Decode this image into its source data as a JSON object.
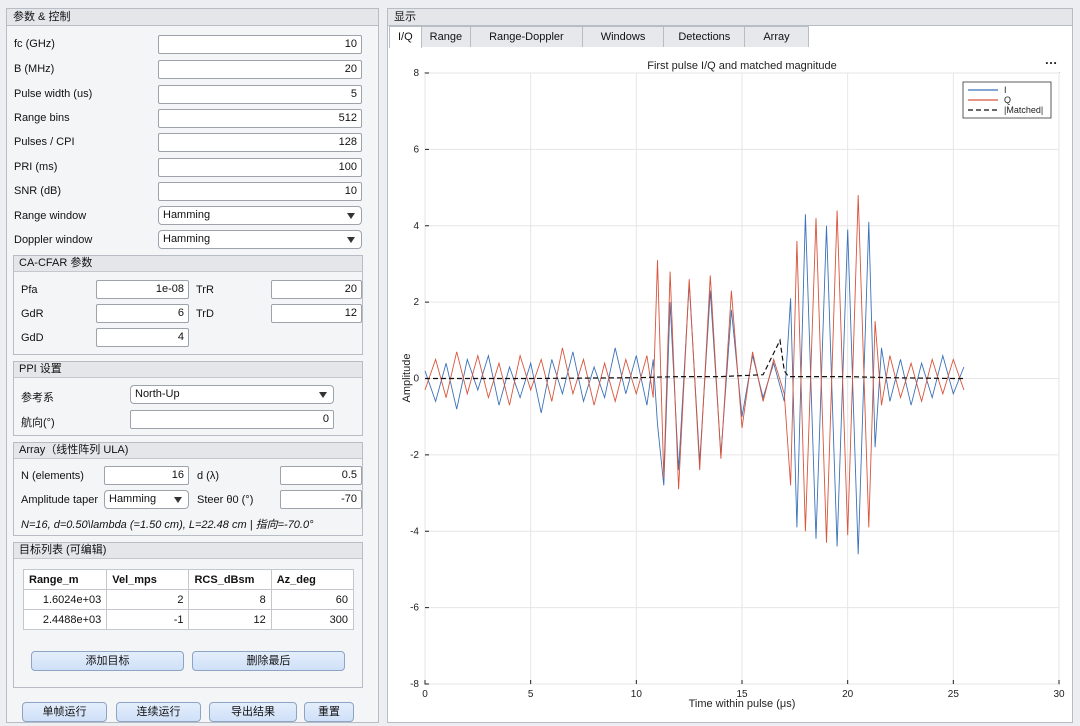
{
  "left_panel": {
    "title": "参数 & 控制"
  },
  "params": [
    {
      "label": "fc (GHz)",
      "value": "10"
    },
    {
      "label": "B (MHz)",
      "value": "20"
    },
    {
      "label": "Pulse width (us)",
      "value": "5"
    },
    {
      "label": "Range bins",
      "value": "512"
    },
    {
      "label": "Pulses / CPI",
      "value": "128"
    },
    {
      "label": "PRI (ms)",
      "value": "100"
    },
    {
      "label": "SNR (dB)",
      "value": "10"
    }
  ],
  "range_window": {
    "label": "Range window",
    "value": "Hamming"
  },
  "doppler_window": {
    "label": "Doppler window",
    "value": "Hamming"
  },
  "cfar": {
    "title": "CA-CFAR 参数",
    "pfa_label": "Pfa",
    "pfa": "1e-08",
    "trr_label": "TrR",
    "trr": "20",
    "gdr_label": "GdR",
    "gdr": "6",
    "trd_label": "TrD",
    "trd": "12",
    "gdd_label": "GdD",
    "gdd": "4"
  },
  "ppi": {
    "title": "PPI 设置",
    "ref_label": "参考系",
    "ref_value": "North-Up",
    "heading_label": "航向(°)",
    "heading_value": "0"
  },
  "array": {
    "title": "Array（线性阵列 ULA)",
    "n_label": "N (elements)",
    "n_value": "16",
    "d_label": "d (λ)",
    "d_value": "0.5",
    "taper_label": "Amplitude taper",
    "taper_value": "Hamming",
    "steer_label": "Steer θ0 (°)",
    "steer_value": "-70",
    "summary": "N=16, d=0.50\\lambda (=1.50 cm), L=22.48 cm | 指向=-70.0°"
  },
  "targets": {
    "title": "目标列表 (可编辑)",
    "columns": [
      "Range_m",
      "Vel_mps",
      "RCS_dBsm",
      "Az_deg"
    ],
    "rows": [
      [
        "1.6024e+03",
        "2",
        "8",
        "60"
      ],
      [
        "2.4488e+03",
        "-1",
        "12",
        "300"
      ]
    ],
    "add_label": "添加目标",
    "delete_label": "删除最后"
  },
  "bottom_buttons": {
    "single": "单帧运行",
    "continuous": "连续运行",
    "export": "导出结果",
    "reset": "重置"
  },
  "right_panel": {
    "title": "显示"
  },
  "tabs": [
    "I/Q",
    "Range",
    "Range-Doppler",
    "Windows",
    "Detections",
    "Array"
  ],
  "more_icon": "…",
  "colors": {
    "I": "#3b72b9",
    "Q": "#d9543b",
    "matched": "#111111"
  },
  "chart_data": {
    "type": "line",
    "title": "First pulse I/Q and matched magnitude",
    "xlabel": "Time  within  pulse  (μs)",
    "ylabel": "Amplitude",
    "xlim": [
      0,
      30
    ],
    "ylim": [
      -8,
      8
    ],
    "xticks": [
      0,
      5,
      10,
      15,
      20,
      25,
      30
    ],
    "yticks": [
      -8,
      -6,
      -4,
      -2,
      0,
      2,
      4,
      6,
      8
    ],
    "grid": true,
    "legend_position": "top-right",
    "series": [
      {
        "name": "I",
        "color": "#3b72b9",
        "style": "solid",
        "x": [
          0,
          0.5,
          1,
          1.5,
          2,
          2.5,
          3,
          3.5,
          4,
          4.5,
          5,
          5.5,
          6,
          6.5,
          7,
          7.5,
          8,
          8.5,
          9,
          9.5,
          10,
          10.5,
          10.8,
          11,
          11.3,
          11.6,
          12,
          12.5,
          13,
          13.5,
          14,
          14.5,
          15,
          15.5,
          16,
          16.5,
          17,
          17.3,
          17.6,
          18,
          18.5,
          19,
          19.5,
          20,
          20.5,
          21,
          21.3,
          21.6,
          22,
          22.5,
          23,
          23.5,
          24,
          24.5,
          25,
          25.5
        ],
        "y": [
          0.2,
          -0.6,
          0.4,
          -0.8,
          0.5,
          -0.3,
          0.6,
          -0.7,
          0.3,
          -0.5,
          0.4,
          -0.9,
          0.5,
          -0.4,
          0.7,
          -0.6,
          0.3,
          -0.5,
          0.8,
          -0.4,
          0.6,
          -0.7,
          0.5,
          -1.2,
          -2.8,
          2.0,
          -2.4,
          2.5,
          -2.2,
          2.3,
          -2.0,
          1.8,
          -1.0,
          0.6,
          -0.5,
          0.4,
          -0.6,
          2.1,
          -3.9,
          4.3,
          -4.2,
          4.0,
          -4.4,
          3.9,
          -4.6,
          4.1,
          -1.8,
          0.8,
          -0.6,
          0.5,
          -0.7,
          0.4,
          -0.5,
          0.6,
          -0.4,
          0.3
        ]
      },
      {
        "name": "Q",
        "color": "#d9543b",
        "style": "solid",
        "x": [
          0,
          0.5,
          1,
          1.5,
          2,
          2.5,
          3,
          3.5,
          4,
          4.5,
          5,
          5.5,
          6,
          6.5,
          7,
          7.5,
          8,
          8.5,
          9,
          9.5,
          10,
          10.5,
          10.8,
          11,
          11.3,
          11.6,
          12,
          12.5,
          13,
          13.5,
          14,
          14.5,
          15,
          15.5,
          16,
          16.5,
          17,
          17.3,
          17.6,
          18,
          18.5,
          19,
          19.5,
          20,
          20.5,
          21,
          21.3,
          21.6,
          22,
          22.5,
          23,
          23.5,
          24,
          24.5,
          25,
          25.5
        ],
        "y": [
          -0.3,
          0.5,
          -0.5,
          0.7,
          -0.4,
          0.6,
          -0.5,
          0.4,
          -0.7,
          0.6,
          -0.3,
          0.5,
          -0.6,
          0.8,
          -0.4,
          0.5,
          -0.7,
          0.4,
          -0.6,
          0.5,
          -0.4,
          0.6,
          -0.5,
          3.1,
          -2.6,
          2.8,
          -2.9,
          2.6,
          -2.4,
          2.7,
          -2.1,
          2.3,
          -1.3,
          0.7,
          -0.6,
          0.5,
          -0.4,
          -2.8,
          3.6,
          -4.0,
          4.2,
          -4.3,
          4.4,
          -4.1,
          4.8,
          -3.9,
          1.5,
          -0.7,
          0.6,
          -0.5,
          0.4,
          -0.6,
          0.5,
          -0.4,
          0.5,
          -0.3
        ]
      },
      {
        "name": "|Matched|",
        "color": "#111111",
        "style": "dashed",
        "x": [
          0,
          5,
          10,
          12,
          14,
          16,
          16.8,
          17,
          17.2,
          18,
          20,
          22,
          25,
          25.5
        ],
        "y": [
          0.0,
          0.0,
          0.02,
          0.05,
          0.05,
          0.1,
          1.0,
          0.2,
          0.05,
          0.05,
          0.05,
          0.02,
          0.0,
          0.0
        ]
      }
    ]
  }
}
